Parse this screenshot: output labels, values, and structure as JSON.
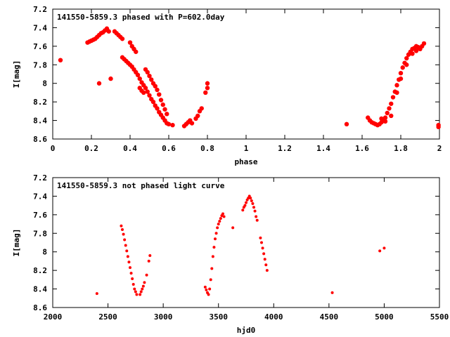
{
  "chart_data": [
    {
      "type": "scatter",
      "title": "141550-5859.3 phased with P=602.0day",
      "xlabel": "phase",
      "ylabel": "I[mag]",
      "xlim": [
        0,
        2
      ],
      "ylim": [
        8.6,
        7.2
      ],
      "y_inverted": true,
      "grid": false,
      "color": "#ff0000",
      "marker": "dense-dot",
      "xticks": [
        "0",
        "0.2",
        "0.4",
        "0.6",
        "0.8",
        "1",
        "1.2",
        "1.4",
        "1.6",
        "1.8",
        "2"
      ],
      "yticks": [
        "7.2",
        "7.4",
        "7.6",
        "7.8",
        "8",
        "8.2",
        "8.4",
        "8.6"
      ],
      "points": [
        [
          0.04,
          7.75
        ],
        [
          0.18,
          7.56
        ],
        [
          0.19,
          7.55
        ],
        [
          0.2,
          7.54
        ],
        [
          0.21,
          7.53
        ],
        [
          0.22,
          7.52
        ],
        [
          0.23,
          7.5
        ],
        [
          0.24,
          7.48
        ],
        [
          0.25,
          7.46
        ],
        [
          0.26,
          7.45
        ],
        [
          0.27,
          7.43
        ],
        [
          0.28,
          7.41
        ],
        [
          0.29,
          7.44
        ],
        [
          0.24,
          8.0
        ],
        [
          0.3,
          7.95
        ],
        [
          0.32,
          7.44
        ],
        [
          0.33,
          7.46
        ],
        [
          0.34,
          7.48
        ],
        [
          0.35,
          7.5
        ],
        [
          0.36,
          7.52
        ],
        [
          0.4,
          7.56
        ],
        [
          0.41,
          7.6
        ],
        [
          0.42,
          7.63
        ],
        [
          0.43,
          7.66
        ],
        [
          0.36,
          7.72
        ],
        [
          0.37,
          7.74
        ],
        [
          0.38,
          7.76
        ],
        [
          0.39,
          7.78
        ],
        [
          0.4,
          7.8
        ],
        [
          0.41,
          7.82
        ],
        [
          0.42,
          7.85
        ],
        [
          0.43,
          7.88
        ],
        [
          0.44,
          7.91
        ],
        [
          0.45,
          7.95
        ],
        [
          0.46,
          7.99
        ],
        [
          0.47,
          8.02
        ],
        [
          0.48,
          8.05
        ],
        [
          0.49,
          8.09
        ],
        [
          0.5,
          8.13
        ],
        [
          0.51,
          8.17
        ],
        [
          0.52,
          8.2
        ],
        [
          0.53,
          8.24
        ],
        [
          0.54,
          8.27
        ],
        [
          0.55,
          8.31
        ],
        [
          0.56,
          8.34
        ],
        [
          0.57,
          8.37
        ],
        [
          0.58,
          8.4
        ],
        [
          0.59,
          8.43
        ],
        [
          0.6,
          8.44
        ],
        [
          0.62,
          8.45
        ],
        [
          0.48,
          7.85
        ],
        [
          0.49,
          7.88
        ],
        [
          0.5,
          7.92
        ],
        [
          0.51,
          7.96
        ],
        [
          0.52,
          8.0
        ],
        [
          0.53,
          8.03
        ],
        [
          0.54,
          8.07
        ],
        [
          0.55,
          8.12
        ],
        [
          0.56,
          8.18
        ],
        [
          0.57,
          8.23
        ],
        [
          0.58,
          8.28
        ],
        [
          0.59,
          8.33
        ],
        [
          0.45,
          8.05
        ],
        [
          0.46,
          8.08
        ],
        [
          0.47,
          8.1
        ],
        [
          0.68,
          8.46
        ],
        [
          0.69,
          8.44
        ],
        [
          0.7,
          8.42
        ],
        [
          0.71,
          8.4
        ],
        [
          0.72,
          8.43
        ],
        [
          0.74,
          8.38
        ],
        [
          0.75,
          8.35
        ],
        [
          0.76,
          8.3
        ],
        [
          0.77,
          8.27
        ],
        [
          0.79,
          8.1
        ],
        [
          0.8,
          8.05
        ],
        [
          0.8,
          8.0
        ],
        [
          1.52,
          8.44
        ],
        [
          1.63,
          8.37
        ],
        [
          1.64,
          8.4
        ],
        [
          1.65,
          8.42
        ],
        [
          1.66,
          8.43
        ],
        [
          1.67,
          8.44
        ],
        [
          1.68,
          8.45
        ],
        [
          1.69,
          8.44
        ],
        [
          1.7,
          8.42
        ],
        [
          1.71,
          8.4
        ],
        [
          1.72,
          8.37
        ],
        [
          1.73,
          8.32
        ],
        [
          1.74,
          8.27
        ],
        [
          1.75,
          8.22
        ],
        [
          1.76,
          8.15
        ],
        [
          1.77,
          8.09
        ],
        [
          1.78,
          8.02
        ],
        [
          1.79,
          7.96
        ],
        [
          1.8,
          7.89
        ],
        [
          1.81,
          7.83
        ],
        [
          1.82,
          7.78
        ],
        [
          1.83,
          7.73
        ],
        [
          1.84,
          7.69
        ],
        [
          1.85,
          7.66
        ],
        [
          1.86,
          7.63
        ],
        [
          1.87,
          7.62
        ],
        [
          1.88,
          7.6
        ],
        [
          1.89,
          7.61
        ],
        [
          1.9,
          7.63
        ],
        [
          1.91,
          7.6
        ],
        [
          1.92,
          7.57
        ],
        [
          1.7,
          8.38
        ],
        [
          1.72,
          8.41
        ],
        [
          1.75,
          8.35
        ],
        [
          1.78,
          8.1
        ],
        [
          1.8,
          7.95
        ],
        [
          1.83,
          7.8
        ],
        [
          1.86,
          7.68
        ],
        [
          1.88,
          7.65
        ],
        [
          1.995,
          8.45
        ],
        [
          1.995,
          8.47
        ]
      ]
    },
    {
      "type": "scatter",
      "title": "141550-5859.3 not phased light curve",
      "xlabel": "hjd0",
      "ylabel": "I[mag]",
      "xlim": [
        2000,
        5500
      ],
      "ylim": [
        8.6,
        7.2
      ],
      "y_inverted": true,
      "grid": false,
      "color": "#ff0000",
      "marker": "small-dot",
      "xticks": [
        "2000",
        "2500",
        "3000",
        "3500",
        "4000",
        "4500",
        "5000",
        "5500"
      ],
      "yticks": [
        "7.2",
        "7.4",
        "7.6",
        "7.8",
        "8",
        "8.2",
        "8.4",
        "8.6"
      ],
      "points": [
        [
          2400,
          8.45
        ],
        [
          2620,
          7.72
        ],
        [
          2630,
          7.76
        ],
        [
          2640,
          7.81
        ],
        [
          2650,
          7.87
        ],
        [
          2660,
          7.93
        ],
        [
          2670,
          7.99
        ],
        [
          2680,
          8.05
        ],
        [
          2690,
          8.11
        ],
        [
          2700,
          8.17
        ],
        [
          2710,
          8.23
        ],
        [
          2720,
          8.29
        ],
        [
          2730,
          8.35
        ],
        [
          2740,
          8.4
        ],
        [
          2750,
          8.43
        ],
        [
          2760,
          8.46
        ],
        [
          2790,
          8.46
        ],
        [
          2800,
          8.43
        ],
        [
          2810,
          8.4
        ],
        [
          2820,
          8.37
        ],
        [
          2830,
          8.33
        ],
        [
          2850,
          8.25
        ],
        [
          2870,
          8.1
        ],
        [
          2880,
          8.04
        ],
        [
          3380,
          8.38
        ],
        [
          3390,
          8.41
        ],
        [
          3400,
          8.44
        ],
        [
          3410,
          8.46
        ],
        [
          3420,
          8.4
        ],
        [
          3430,
          8.3
        ],
        [
          3440,
          8.18
        ],
        [
          3450,
          8.05
        ],
        [
          3460,
          7.95
        ],
        [
          3470,
          7.86
        ],
        [
          3480,
          7.8
        ],
        [
          3490,
          7.74
        ],
        [
          3500,
          7.7
        ],
        [
          3510,
          7.67
        ],
        [
          3520,
          7.64
        ],
        [
          3530,
          7.61
        ],
        [
          3540,
          7.59
        ],
        [
          3550,
          7.62
        ],
        [
          3630,
          7.74
        ],
        [
          3720,
          7.55
        ],
        [
          3730,
          7.52
        ],
        [
          3740,
          7.5
        ],
        [
          3750,
          7.47
        ],
        [
          3760,
          7.44
        ],
        [
          3770,
          7.42
        ],
        [
          3780,
          7.4
        ],
        [
          3790,
          7.42
        ],
        [
          3800,
          7.45
        ],
        [
          3810,
          7.48
        ],
        [
          3820,
          7.52
        ],
        [
          3830,
          7.56
        ],
        [
          3840,
          7.62
        ],
        [
          3850,
          7.66
        ],
        [
          3880,
          7.85
        ],
        [
          3890,
          7.9
        ],
        [
          3900,
          7.96
        ],
        [
          3910,
          8.02
        ],
        [
          3920,
          8.08
        ],
        [
          3930,
          8.14
        ],
        [
          3940,
          8.2
        ],
        [
          4530,
          8.44
        ],
        [
          4960,
          7.99
        ],
        [
          5000,
          7.96
        ]
      ]
    }
  ]
}
